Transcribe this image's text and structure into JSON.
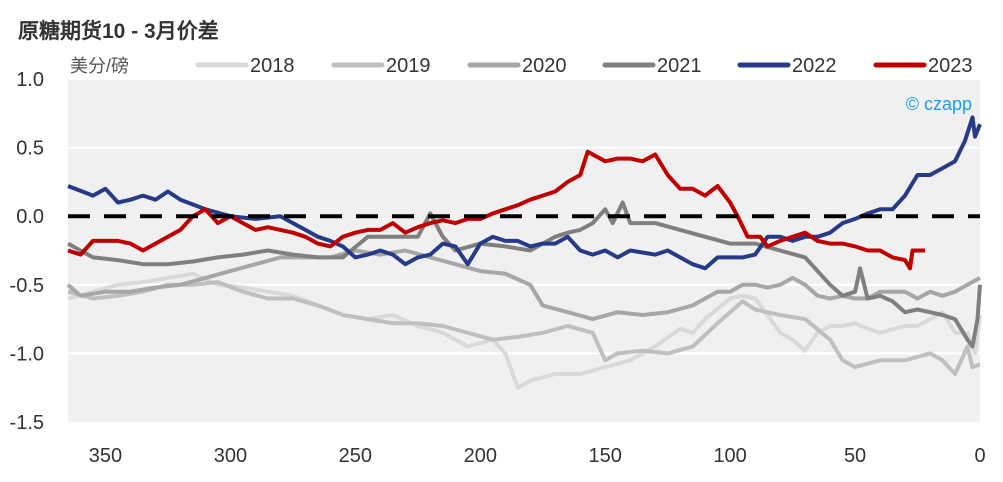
{
  "chart_data": {
    "type": "line",
    "title": "原糖期货10 - 3月价差",
    "ylabel": "美分/磅",
    "xlabel": "",
    "xlim": [
      365,
      0
    ],
    "ylim": [
      -1.5,
      1.0
    ],
    "xticks": [
      350,
      300,
      250,
      200,
      150,
      100,
      50,
      0
    ],
    "xtick_labels": [
      "350",
      "300",
      "250",
      "200",
      "150",
      "100",
      "50",
      "0"
    ],
    "yticks": [
      1.0,
      0.5,
      0.0,
      -0.5,
      -1.0,
      -1.5
    ],
    "ytick_labels": [
      "1.0",
      "0.5",
      "0.0",
      "-0.5",
      "-1.0",
      "-1.5"
    ],
    "grid": true,
    "legend_position": "top",
    "reference_line": {
      "y": 0,
      "style": "dashed",
      "color": "#000000"
    },
    "watermark": "© czapp",
    "series": [
      {
        "name": "2018",
        "color": "#d9d9d9",
        "x": [
          365,
          355,
          345,
          335,
          325,
          315,
          305,
          295,
          285,
          275,
          265,
          255,
          245,
          235,
          225,
          215,
          205,
          195,
          190,
          185,
          180,
          170,
          160,
          150,
          140,
          130,
          120,
          115,
          110,
          100,
          95,
          90,
          85,
          80,
          75,
          70,
          65,
          60,
          55,
          50,
          45,
          40,
          30,
          25,
          20,
          15,
          10,
          5,
          2,
          0
        ],
        "y": [
          -0.6,
          -0.55,
          -0.5,
          -0.48,
          -0.45,
          -0.42,
          -0.5,
          -0.52,
          -0.55,
          -0.58,
          -0.65,
          -0.72,
          -0.75,
          -0.72,
          -0.8,
          -0.85,
          -0.95,
          -0.9,
          -1.0,
          -1.25,
          -1.2,
          -1.15,
          -1.15,
          -1.1,
          -1.05,
          -0.95,
          -0.82,
          -0.85,
          -0.75,
          -0.6,
          -0.58,
          -0.6,
          -0.72,
          -0.85,
          -0.9,
          -0.98,
          -0.85,
          -0.8,
          -0.8,
          -0.78,
          -0.82,
          -0.85,
          -0.8,
          -0.8,
          -0.75,
          -0.7,
          -0.85,
          -0.85,
          -1.0,
          -0.72
        ]
      },
      {
        "name": "2019",
        "color": "#bfbfbf",
        "x": [
          365,
          355,
          345,
          335,
          325,
          315,
          305,
          295,
          285,
          275,
          265,
          255,
          245,
          235,
          225,
          215,
          205,
          195,
          185,
          175,
          165,
          155,
          150,
          145,
          135,
          125,
          115,
          105,
          95,
          90,
          80,
          70,
          60,
          55,
          50,
          40,
          30,
          20,
          15,
          10,
          5,
          3,
          0
        ],
        "y": [
          -0.55,
          -0.6,
          -0.58,
          -0.55,
          -0.5,
          -0.5,
          -0.48,
          -0.55,
          -0.6,
          -0.6,
          -0.65,
          -0.72,
          -0.75,
          -0.78,
          -0.78,
          -0.8,
          -0.85,
          -0.9,
          -0.88,
          -0.85,
          -0.8,
          -0.85,
          -1.05,
          -1.0,
          -0.98,
          -1.0,
          -0.95,
          -0.78,
          -0.62,
          -0.68,
          -0.72,
          -0.75,
          -0.9,
          -1.05,
          -1.1,
          -1.05,
          -1.05,
          -1.0,
          -1.05,
          -1.15,
          -0.95,
          -1.1,
          -1.08
        ]
      },
      {
        "name": "2020",
        "color": "#a6a6a6",
        "x": [
          365,
          360,
          350,
          340,
          330,
          320,
          310,
          300,
          290,
          280,
          270,
          260,
          250,
          240,
          230,
          220,
          210,
          200,
          190,
          180,
          175,
          165,
          155,
          145,
          135,
          125,
          115,
          110,
          105,
          100,
          95,
          90,
          85,
          80,
          75,
          70,
          65,
          60,
          55,
          50,
          45,
          40,
          35,
          30,
          25,
          20,
          15,
          10,
          5,
          0
        ],
        "y": [
          -0.5,
          -0.58,
          -0.55,
          -0.55,
          -0.52,
          -0.5,
          -0.45,
          -0.4,
          -0.35,
          -0.3,
          -0.3,
          -0.3,
          -0.25,
          -0.28,
          -0.25,
          -0.3,
          -0.35,
          -0.4,
          -0.42,
          -0.5,
          -0.65,
          -0.7,
          -0.75,
          -0.7,
          -0.72,
          -0.7,
          -0.65,
          -0.6,
          -0.55,
          -0.55,
          -0.5,
          -0.5,
          -0.52,
          -0.5,
          -0.45,
          -0.5,
          -0.58,
          -0.6,
          -0.58,
          -0.6,
          -0.6,
          -0.55,
          -0.55,
          -0.55,
          -0.6,
          -0.55,
          -0.58,
          -0.55,
          -0.5,
          -0.45
        ]
      },
      {
        "name": "2021",
        "color": "#7f7f7f",
        "x": [
          365,
          355,
          345,
          335,
          325,
          315,
          305,
          295,
          285,
          275,
          265,
          255,
          245,
          235,
          225,
          220,
          215,
          210,
          200,
          190,
          180,
          170,
          165,
          160,
          155,
          150,
          147,
          143,
          140,
          130,
          120,
          110,
          100,
          90,
          80,
          70,
          60,
          55,
          50,
          48,
          45,
          40,
          35,
          30,
          25,
          20,
          15,
          10,
          5,
          3,
          1,
          0
        ],
        "y": [
          -0.2,
          -0.3,
          -0.32,
          -0.35,
          -0.35,
          -0.33,
          -0.3,
          -0.28,
          -0.25,
          -0.28,
          -0.3,
          -0.3,
          -0.15,
          -0.15,
          -0.15,
          0.02,
          -0.15,
          -0.25,
          -0.2,
          -0.22,
          -0.25,
          -0.15,
          -0.12,
          -0.1,
          -0.05,
          0.05,
          -0.05,
          0.1,
          -0.05,
          -0.05,
          -0.1,
          -0.15,
          -0.2,
          -0.2,
          -0.25,
          -0.3,
          -0.5,
          -0.58,
          -0.55,
          -0.38,
          -0.6,
          -0.58,
          -0.62,
          -0.7,
          -0.68,
          -0.7,
          -0.72,
          -0.75,
          -0.9,
          -0.95,
          -0.75,
          -0.5
        ]
      },
      {
        "name": "2022",
        "color": "#263a87",
        "x": [
          365,
          355,
          350,
          345,
          340,
          335,
          330,
          325,
          320,
          310,
          300,
          290,
          280,
          275,
          270,
          265,
          260,
          255,
          250,
          245,
          240,
          235,
          230,
          225,
          220,
          215,
          210,
          205,
          200,
          195,
          190,
          185,
          180,
          175,
          170,
          165,
          160,
          155,
          150,
          145,
          140,
          130,
          125,
          120,
          115,
          110,
          105,
          100,
          95,
          90,
          85,
          80,
          75,
          70,
          65,
          60,
          55,
          50,
          45,
          40,
          35,
          30,
          25,
          20,
          15,
          10,
          6,
          3,
          2,
          0
        ],
        "y": [
          0.22,
          0.15,
          0.2,
          0.1,
          0.12,
          0.15,
          0.12,
          0.18,
          0.12,
          0.05,
          0.0,
          -0.02,
          0.0,
          -0.05,
          -0.1,
          -0.15,
          -0.18,
          -0.22,
          -0.3,
          -0.28,
          -0.25,
          -0.28,
          -0.35,
          -0.3,
          -0.28,
          -0.2,
          -0.22,
          -0.35,
          -0.2,
          -0.15,
          -0.18,
          -0.18,
          -0.22,
          -0.2,
          -0.2,
          -0.15,
          -0.25,
          -0.28,
          -0.25,
          -0.3,
          -0.25,
          -0.28,
          -0.25,
          -0.3,
          -0.35,
          -0.38,
          -0.3,
          -0.3,
          -0.3,
          -0.28,
          -0.15,
          -0.15,
          -0.18,
          -0.15,
          -0.15,
          -0.12,
          -0.05,
          -0.02,
          0.02,
          0.05,
          0.05,
          0.15,
          0.3,
          0.3,
          0.35,
          0.4,
          0.55,
          0.72,
          0.58,
          0.67
        ]
      },
      {
        "name": "2023",
        "color": "#c00000",
        "x": [
          365,
          360,
          355,
          345,
          340,
          335,
          330,
          325,
          320,
          315,
          310,
          305,
          300,
          295,
          290,
          285,
          280,
          275,
          270,
          265,
          260,
          255,
          250,
          245,
          240,
          235,
          230,
          225,
          220,
          215,
          210,
          205,
          200,
          195,
          190,
          185,
          180,
          175,
          170,
          165,
          160,
          157,
          150,
          145,
          140,
          135,
          130,
          125,
          120,
          115,
          110,
          105,
          100,
          97,
          93,
          88,
          85,
          80,
          75,
          70,
          65,
          60,
          55,
          50,
          45,
          40,
          35,
          30,
          28,
          27,
          22
        ],
        "y": [
          -0.25,
          -0.28,
          -0.18,
          -0.18,
          -0.2,
          -0.25,
          -0.2,
          -0.15,
          -0.1,
          0.0,
          0.05,
          -0.05,
          0.0,
          -0.05,
          -0.1,
          -0.08,
          -0.1,
          -0.12,
          -0.15,
          -0.2,
          -0.22,
          -0.15,
          -0.12,
          -0.1,
          -0.1,
          -0.05,
          -0.12,
          -0.08,
          -0.05,
          -0.03,
          -0.05,
          -0.02,
          -0.02,
          0.02,
          0.05,
          0.08,
          0.12,
          0.15,
          0.18,
          0.25,
          0.3,
          0.47,
          0.4,
          0.42,
          0.42,
          0.4,
          0.45,
          0.3,
          0.2,
          0.2,
          0.15,
          0.22,
          0.1,
          0.0,
          -0.15,
          -0.15,
          -0.22,
          -0.18,
          -0.15,
          -0.12,
          -0.18,
          -0.2,
          -0.2,
          -0.22,
          -0.25,
          -0.25,
          -0.3,
          -0.32,
          -0.38,
          -0.25,
          -0.25
        ]
      }
    ]
  }
}
